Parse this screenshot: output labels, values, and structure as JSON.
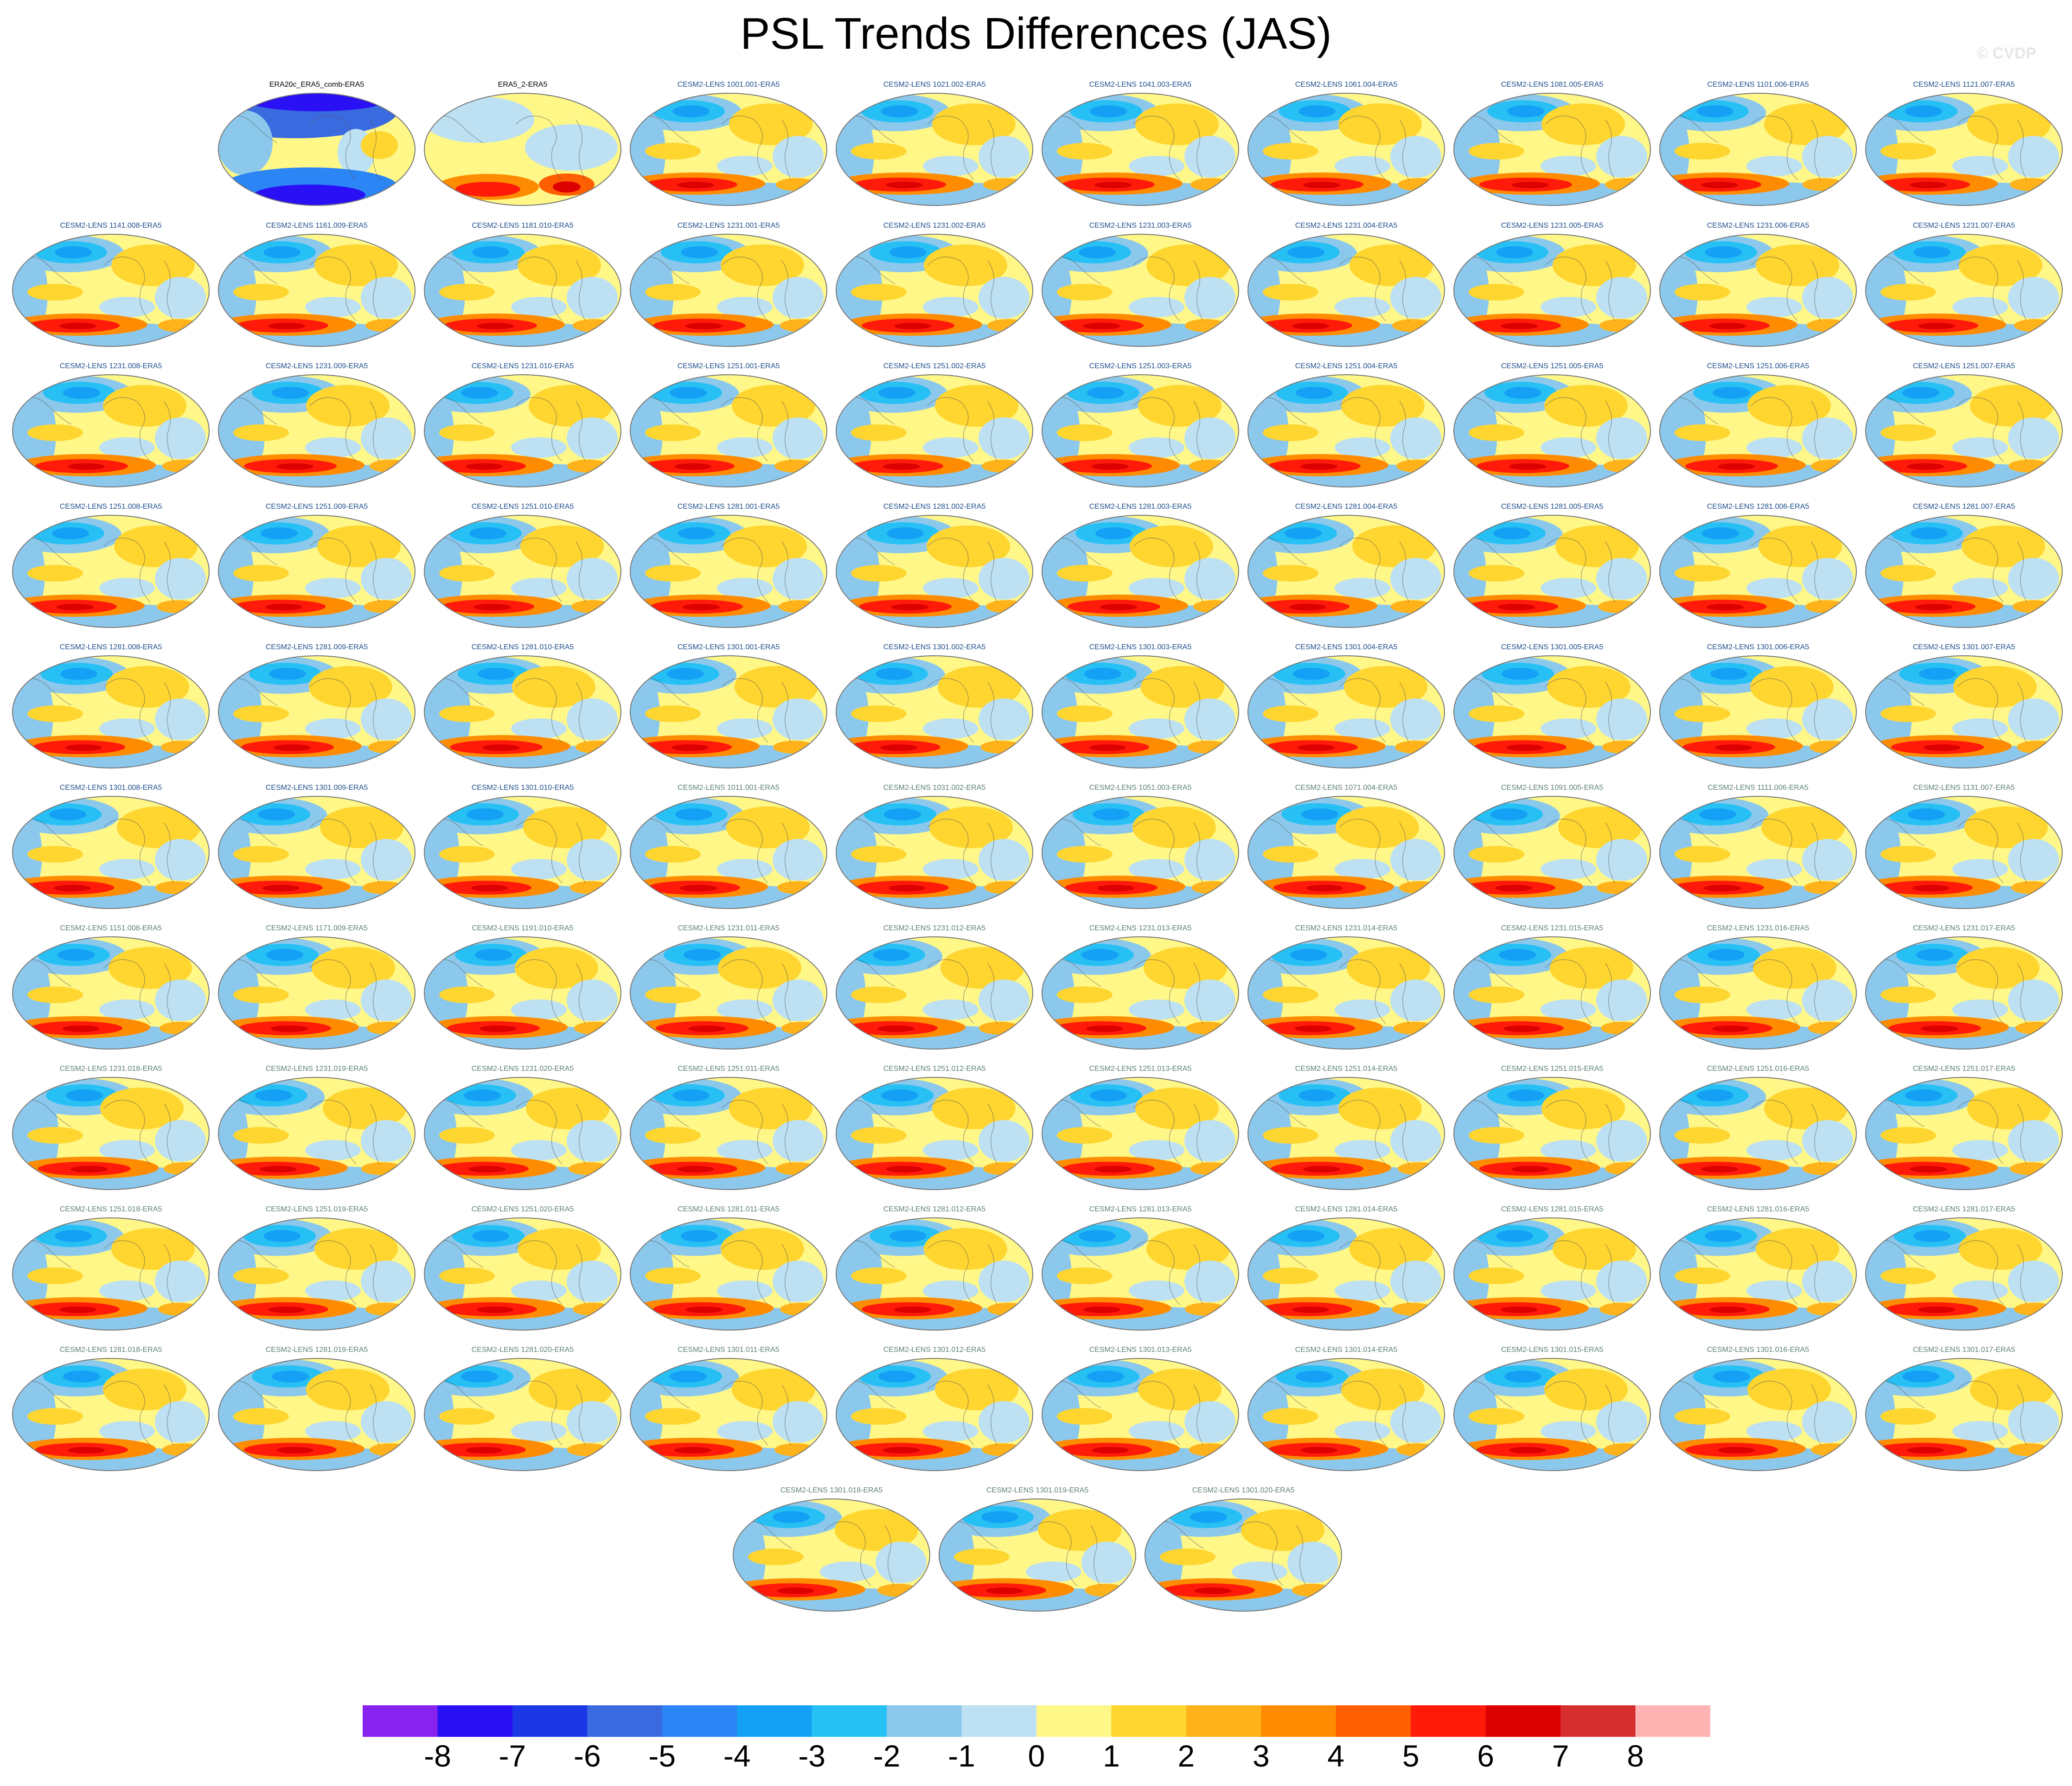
{
  "title": "PSL Trends Differences (JAS)",
  "watermark": "© CVDP",
  "panels": [
    {
      "label": "ERA20c_ERA5_comb-ERA5",
      "style": "ref1",
      "label_color": "#000000"
    },
    {
      "label": "ERA5_2-ERA5",
      "style": "ref2",
      "label_color": "#000000"
    },
    {
      "label": "CESM2-LENS 1001.001-ERA5",
      "label_color": "#1f4e8c"
    },
    {
      "label": "CESM2-LENS 1021.002-ERA5",
      "label_color": "#1f4e8c"
    },
    {
      "label": "CESM2-LENS 1041.003-ERA5",
      "label_color": "#1f4e8c"
    },
    {
      "label": "CESM2-LENS 1061.004-ERA5",
      "label_color": "#1f4e8c"
    },
    {
      "label": "CESM2-LENS 1081.005-ERA5",
      "label_color": "#1f4e8c"
    },
    {
      "label": "CESM2-LENS 1101.006-ERA5",
      "label_color": "#1f4e8c"
    },
    {
      "label": "CESM2-LENS 1121.007-ERA5",
      "label_color": "#1f4e8c"
    },
    {
      "label": "CESM2-LENS 1141.008-ERA5",
      "label_color": "#1f4e8c"
    },
    {
      "label": "CESM2-LENS 1161.009-ERA5",
      "label_color": "#1f4e8c"
    },
    {
      "label": "CESM2-LENS 1181.010-ERA5",
      "label_color": "#1f4e8c"
    },
    {
      "label": "CESM2-LENS 1231.001-ERA5",
      "label_color": "#1f4e8c"
    },
    {
      "label": "CESM2-LENS 1231.002-ERA5",
      "label_color": "#1f4e8c"
    },
    {
      "label": "CESM2-LENS 1231.003-ERA5",
      "label_color": "#1f4e8c"
    },
    {
      "label": "CESM2-LENS 1231.004-ERA5",
      "label_color": "#1f4e8c"
    },
    {
      "label": "CESM2-LENS 1231.005-ERA5",
      "label_color": "#1f4e8c"
    },
    {
      "label": "CESM2-LENS 1231.006-ERA5",
      "label_color": "#1f4e8c"
    },
    {
      "label": "CESM2-LENS 1231.007-ERA5",
      "label_color": "#1f4e8c"
    },
    {
      "label": "CESM2-LENS 1231.008-ERA5",
      "label_color": "#1f4e8c"
    },
    {
      "label": "CESM2-LENS 1231.009-ERA5",
      "label_color": "#1f4e8c"
    },
    {
      "label": "CESM2-LENS 1231.010-ERA5",
      "label_color": "#1f4e8c"
    },
    {
      "label": "CESM2-LENS 1251.001-ERA5",
      "label_color": "#1f4e8c"
    },
    {
      "label": "CESM2-LENS 1251.002-ERA5",
      "label_color": "#1f4e8c"
    },
    {
      "label": "CESM2-LENS 1251.003-ERA5",
      "label_color": "#1f4e8c"
    },
    {
      "label": "CESM2-LENS 1251.004-ERA5",
      "label_color": "#1f4e8c"
    },
    {
      "label": "CESM2-LENS 1251.005-ERA5",
      "label_color": "#1f4e8c"
    },
    {
      "label": "CESM2-LENS 1251.006-ERA5",
      "label_color": "#1f4e8c"
    },
    {
      "label": "CESM2-LENS 1251.007-ERA5",
      "label_color": "#1f4e8c"
    },
    {
      "label": "CESM2-LENS 1251.008-ERA5",
      "label_color": "#1f4e8c"
    },
    {
      "label": "CESM2-LENS 1251.009-ERA5",
      "label_color": "#1f4e8c"
    },
    {
      "label": "CESM2-LENS 1251.010-ERA5",
      "label_color": "#1f4e8c"
    },
    {
      "label": "CESM2-LENS 1281.001-ERA5",
      "label_color": "#1f4e8c"
    },
    {
      "label": "CESM2-LENS 1281.002-ERA5",
      "label_color": "#1f4e8c"
    },
    {
      "label": "CESM2-LENS 1281.003-ERA5",
      "label_color": "#1f4e8c"
    },
    {
      "label": "CESM2-LENS 1281.004-ERA5",
      "label_color": "#1f4e8c"
    },
    {
      "label": "CESM2-LENS 1281.005-ERA5",
      "label_color": "#1f4e8c"
    },
    {
      "label": "CESM2-LENS 1281.006-ERA5",
      "label_color": "#1f4e8c"
    },
    {
      "label": "CESM2-LENS 1281.007-ERA5",
      "label_color": "#1f4e8c"
    },
    {
      "label": "CESM2-LENS 1281.008-ERA5",
      "label_color": "#1f4e8c"
    },
    {
      "label": "CESM2-LENS 1281.009-ERA5",
      "label_color": "#1f4e8c"
    },
    {
      "label": "CESM2-LENS 1281.010-ERA5",
      "label_color": "#1f4e8c"
    },
    {
      "label": "CESM2-LENS 1301.001-ERA5",
      "label_color": "#1f4e8c"
    },
    {
      "label": "CESM2-LENS 1301.002-ERA5",
      "label_color": "#1f4e8c"
    },
    {
      "label": "CESM2-LENS 1301.003-ERA5",
      "label_color": "#1f4e8c"
    },
    {
      "label": "CESM2-LENS 1301.004-ERA5",
      "label_color": "#1f4e8c"
    },
    {
      "label": "CESM2-LENS 1301.005-ERA5",
      "label_color": "#1f4e8c"
    },
    {
      "label": "CESM2-LENS 1301.006-ERA5",
      "label_color": "#1f4e8c"
    },
    {
      "label": "CESM2-LENS 1301.007-ERA5",
      "label_color": "#1f4e8c"
    },
    {
      "label": "CESM2-LENS 1301.008-ERA5",
      "label_color": "#1f4e8c"
    },
    {
      "label": "CESM2-LENS 1301.009-ERA5",
      "label_color": "#1f4e8c"
    },
    {
      "label": "CESM2-LENS 1301.010-ERA5",
      "label_color": "#1f4e8c"
    },
    {
      "label": "CESM2-LENS 1011.001-ERA5",
      "label_color": "#5d7f7a"
    },
    {
      "label": "CESM2-LENS 1031.002-ERA5",
      "label_color": "#5d7f7a"
    },
    {
      "label": "CESM2-LENS 1051.003-ERA5",
      "label_color": "#5d7f7a"
    },
    {
      "label": "CESM2-LENS 1071.004-ERA5",
      "label_color": "#5d7f7a"
    },
    {
      "label": "CESM2-LENS 1091.005-ERA5",
      "label_color": "#5d7f7a"
    },
    {
      "label": "CESM2-LENS 1111.006-ERA5",
      "label_color": "#5d7f7a"
    },
    {
      "label": "CESM2-LENS 1131.007-ERA5",
      "label_color": "#5d7f7a"
    },
    {
      "label": "CESM2-LENS 1151.008-ERA5",
      "label_color": "#5d7f7a"
    },
    {
      "label": "CESM2-LENS 1171.009-ERA5",
      "label_color": "#5d7f7a"
    },
    {
      "label": "CESM2-LENS 1191.010-ERA5",
      "label_color": "#5d7f7a"
    },
    {
      "label": "CESM2-LENS 1231.011-ERA5",
      "label_color": "#5d7f7a"
    },
    {
      "label": "CESM2-LENS 1231.012-ERA5",
      "label_color": "#5d7f7a"
    },
    {
      "label": "CESM2-LENS 1231.013-ERA5",
      "label_color": "#5d7f7a"
    },
    {
      "label": "CESM2-LENS 1231.014-ERA5",
      "label_color": "#5d7f7a"
    },
    {
      "label": "CESM2-LENS 1231.015-ERA5",
      "label_color": "#5d7f7a"
    },
    {
      "label": "CESM2-LENS 1231.016-ERA5",
      "label_color": "#5d7f7a"
    },
    {
      "label": "CESM2-LENS 1231.017-ERA5",
      "label_color": "#5d7f7a"
    },
    {
      "label": "CESM2-LENS 1231.018-ERA5",
      "label_color": "#5d7f7a"
    },
    {
      "label": "CESM2-LENS 1231.019-ERA5",
      "label_color": "#5d7f7a"
    },
    {
      "label": "CESM2-LENS 1231.020-ERA5",
      "label_color": "#5d7f7a"
    },
    {
      "label": "CESM2-LENS 1251.011-ERA5",
      "label_color": "#5d7f7a"
    },
    {
      "label": "CESM2-LENS 1251.012-ERA5",
      "label_color": "#5d7f7a"
    },
    {
      "label": "CESM2-LENS 1251.013-ERA5",
      "label_color": "#5d7f7a"
    },
    {
      "label": "CESM2-LENS 1251.014-ERA5",
      "label_color": "#5d7f7a"
    },
    {
      "label": "CESM2-LENS 1251.015-ERA5",
      "label_color": "#5d7f7a"
    },
    {
      "label": "CESM2-LENS 1251.016-ERA5",
      "label_color": "#5d7f7a"
    },
    {
      "label": "CESM2-LENS 1251.017-ERA5",
      "label_color": "#5d7f7a"
    },
    {
      "label": "CESM2-LENS 1251.018-ERA5",
      "label_color": "#5d7f7a"
    },
    {
      "label": "CESM2-LENS 1251.019-ERA5",
      "label_color": "#5d7f7a"
    },
    {
      "label": "CESM2-LENS 1251.020-ERA5",
      "label_color": "#5d7f7a"
    },
    {
      "label": "CESM2-LENS 1281.011-ERA5",
      "label_color": "#5d7f7a"
    },
    {
      "label": "CESM2-LENS 1281.012-ERA5",
      "label_color": "#5d7f7a"
    },
    {
      "label": "CESM2-LENS 1281.013-ERA5",
      "label_color": "#5d7f7a"
    },
    {
      "label": "CESM2-LENS 1281.014-ERA5",
      "label_color": "#5d7f7a"
    },
    {
      "label": "CESM2-LENS 1281.015-ERA5",
      "label_color": "#5d7f7a"
    },
    {
      "label": "CESM2-LENS 1281.016-ERA5",
      "label_color": "#5d7f7a"
    },
    {
      "label": "CESM2-LENS 1281.017-ERA5",
      "label_color": "#5d7f7a"
    },
    {
      "label": "CESM2-LENS 1281.018-ERA5",
      "label_color": "#5d7f7a"
    },
    {
      "label": "CESM2-LENS 1281.019-ERA5",
      "label_color": "#5d7f7a"
    },
    {
      "label": "CESM2-LENS 1281.020-ERA5",
      "label_color": "#5d7f7a"
    },
    {
      "label": "CESM2-LENS 1301.011-ERA5",
      "label_color": "#5d7f7a"
    },
    {
      "label": "CESM2-LENS 1301.012-ERA5",
      "label_color": "#5d7f7a"
    },
    {
      "label": "CESM2-LENS 1301.013-ERA5",
      "label_color": "#5d7f7a"
    },
    {
      "label": "CESM2-LENS 1301.014-ERA5",
      "label_color": "#5d7f7a"
    },
    {
      "label": "CESM2-LENS 1301.015-ERA5",
      "label_color": "#5d7f7a"
    },
    {
      "label": "CESM2-LENS 1301.016-ERA5",
      "label_color": "#5d7f7a"
    },
    {
      "label": "CESM2-LENS 1301.017-ERA5",
      "label_color": "#5d7f7a"
    },
    {
      "label": "CESM2-LENS 1301.018-ERA5",
      "label_color": "#5d7f7a"
    },
    {
      "label": "CESM2-LENS 1301.019-ERA5",
      "label_color": "#5d7f7a"
    },
    {
      "label": "CESM2-LENS 1301.020-ERA5",
      "label_color": "#5d7f7a"
    }
  ],
  "colorbar": {
    "colors": [
      "#8822ee",
      "#2a11f5",
      "#1c38e6",
      "#3a6ae0",
      "#2b85f5",
      "#14a1f5",
      "#27c0f5",
      "#8cc8ec",
      "#bde1f2",
      "#fff787",
      "#ffd530",
      "#ffb21a",
      "#ff8c00",
      "#ff5f00",
      "#ff1a0a",
      "#dc0000",
      "#d52e2e",
      "#ffb3b3"
    ],
    "labels": [
      "-8",
      "-7",
      "-6",
      "-5",
      "-4",
      "-3",
      "-2",
      "-1",
      "0",
      "1",
      "2",
      "3",
      "4",
      "5",
      "6",
      "7",
      "8"
    ]
  }
}
